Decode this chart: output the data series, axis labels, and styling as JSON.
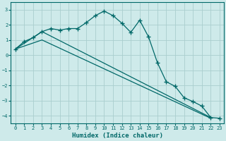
{
  "xlabel": "Humidex (Indice chaleur)",
  "x": [
    0,
    1,
    2,
    3,
    4,
    5,
    6,
    7,
    8,
    9,
    10,
    11,
    12,
    13,
    14,
    15,
    16,
    17,
    18,
    19,
    20,
    21,
    22,
    23
  ],
  "line1": [
    0.4,
    0.9,
    1.15,
    1.55,
    1.75,
    1.65,
    1.75,
    1.75,
    2.15,
    2.6,
    2.9,
    2.6,
    2.1,
    1.5,
    2.3,
    1.2,
    -0.5,
    -1.75,
    -2.05,
    -2.8,
    -3.05,
    -3.35,
    -4.1,
    -4.15
  ],
  "line2_x": [
    0,
    3,
    22
  ],
  "line2_y": [
    0.4,
    1.55,
    -4.1
  ],
  "line3_x": [
    0,
    3,
    22
  ],
  "line3_y": [
    0.4,
    1.0,
    -4.15
  ],
  "bg_color": "#ceeaea",
  "grid_color": "#aacece",
  "line_color": "#006868",
  "ylim": [
    -4.5,
    3.5
  ],
  "xlim": [
    -0.5,
    23.5
  ],
  "yticks": [
    -4,
    -3,
    -2,
    -1,
    0,
    1,
    2,
    3
  ],
  "xticks": [
    0,
    1,
    2,
    3,
    4,
    5,
    6,
    7,
    8,
    9,
    10,
    11,
    12,
    13,
    14,
    15,
    16,
    17,
    18,
    19,
    20,
    21,
    22,
    23
  ]
}
